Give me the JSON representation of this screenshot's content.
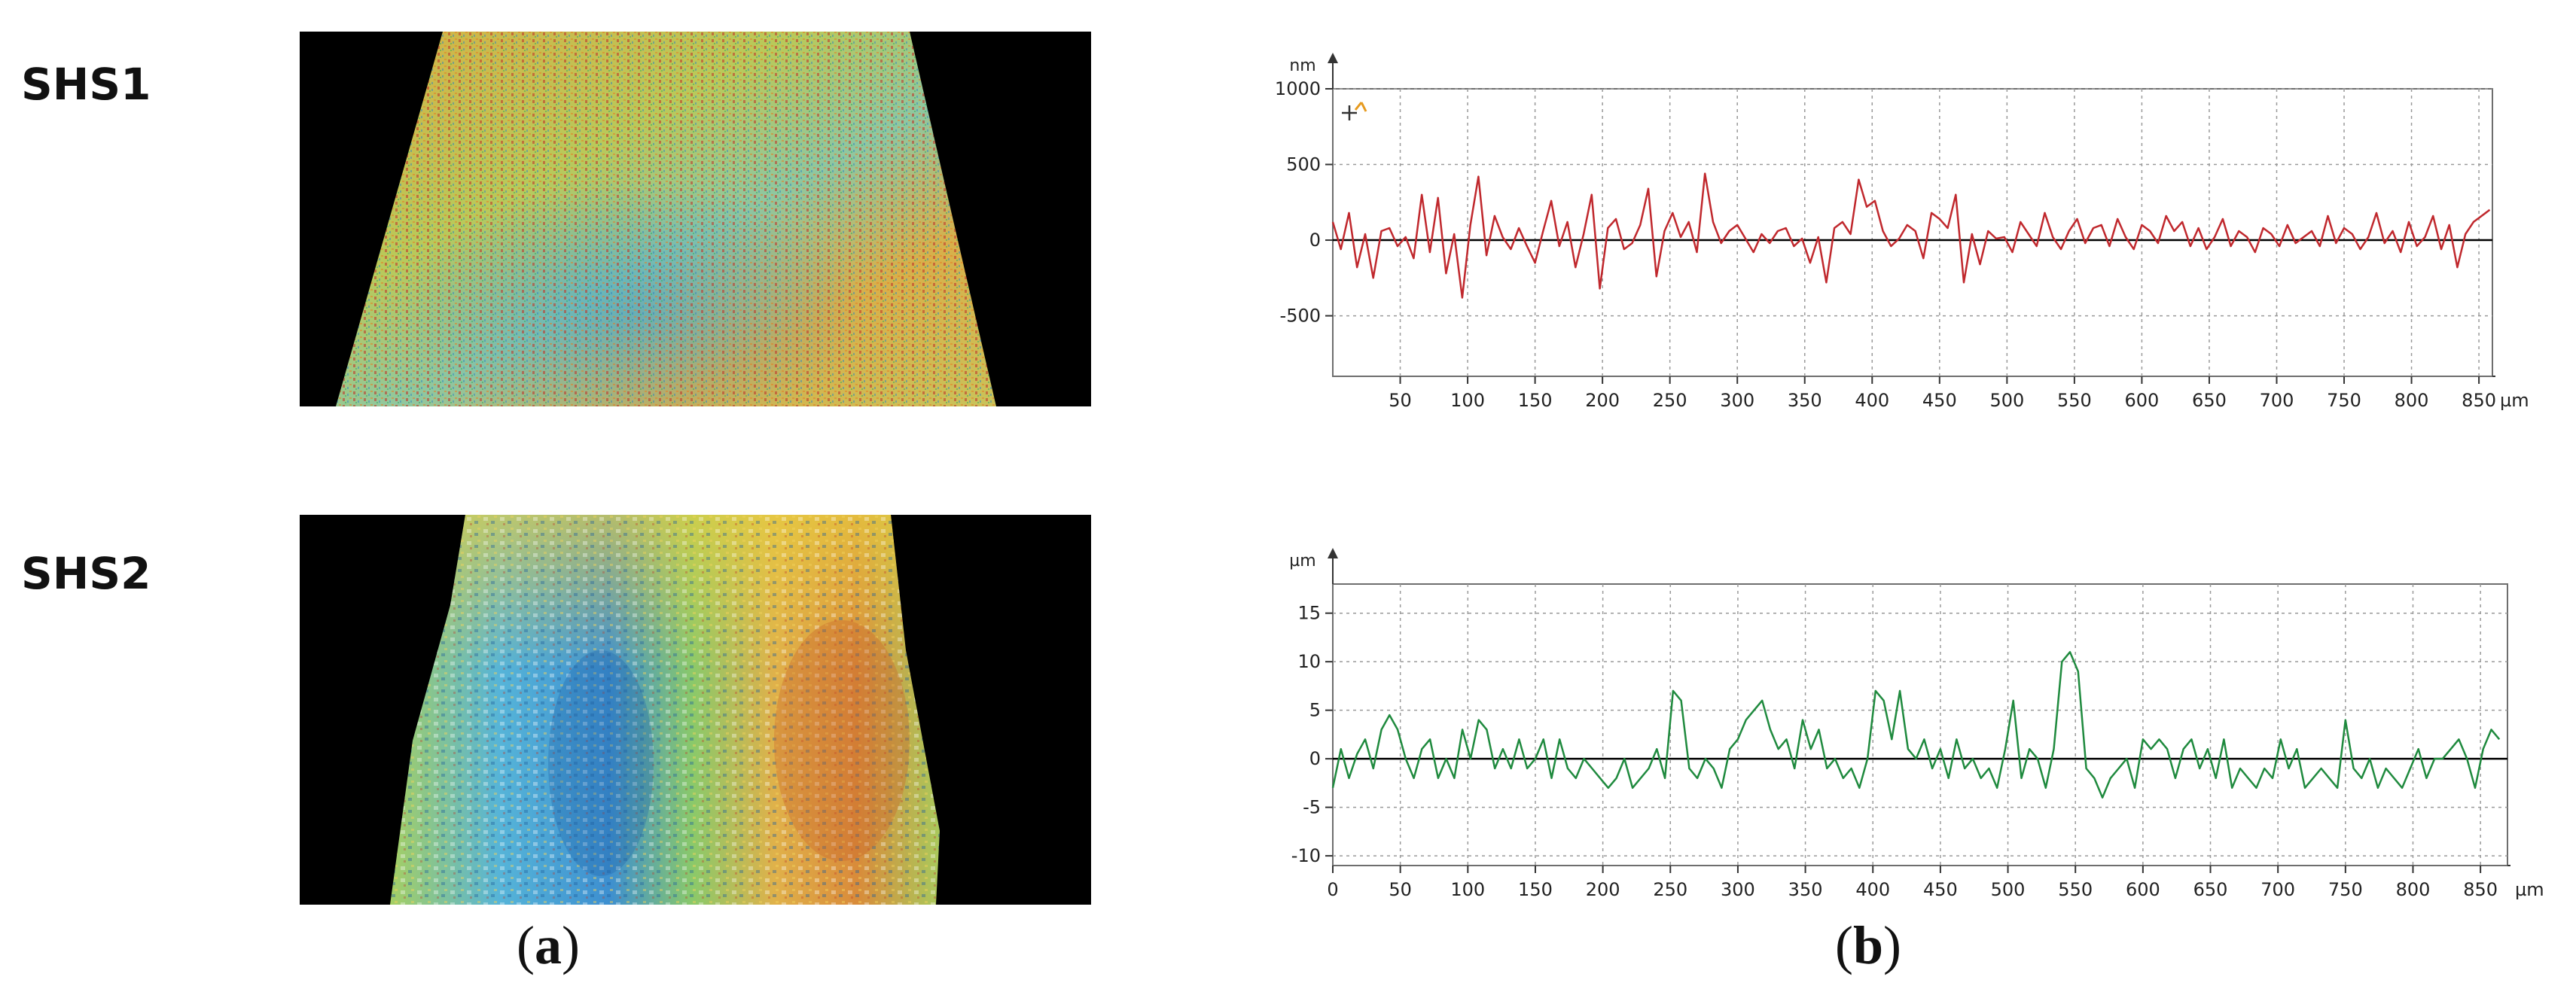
{
  "labels": {
    "row1": "SHS1",
    "row2": "SHS2",
    "panel_a_open": "(",
    "panel_a_letter": "a",
    "panel_a_close": ")",
    "panel_b_open": "(",
    "panel_b_letter": "b",
    "panel_b_close": ")"
  },
  "colors": {
    "shs1_line": "#c0282d",
    "shs2_line": "#1f8a3e",
    "grid": "#9a9a9a",
    "frame": "#6e6e6e",
    "zero_line": "#000000"
  },
  "chart_data": [
    {
      "id": "shs1",
      "type": "line",
      "unit_y": "nm",
      "unit_x": "µm",
      "xlim": [
        0,
        860
      ],
      "ylim": [
        -900,
        1000
      ],
      "yticks": [
        1000,
        500,
        0,
        -500
      ],
      "xticks": [
        50,
        100,
        150,
        200,
        250,
        300,
        350,
        400,
        450,
        500,
        550,
        600,
        650,
        700,
        750,
        800,
        850
      ],
      "grid": true,
      "series": [
        {
          "x": [
            0,
            6,
            12,
            18,
            24,
            30,
            36,
            42,
            48,
            54,
            60,
            66,
            72,
            78,
            84,
            90,
            96,
            102,
            108,
            114,
            120,
            126,
            132,
            138,
            144,
            150,
            156,
            162,
            168,
            174,
            180,
            186,
            192,
            198,
            204,
            210,
            216,
            222,
            228,
            234,
            240,
            246,
            252,
            258,
            264,
            270,
            276,
            282,
            288,
            294,
            300,
            306,
            312,
            318,
            324,
            330,
            336,
            342,
            348,
            354,
            360,
            366,
            372,
            378,
            384,
            390,
            396,
            402,
            408,
            414,
            420,
            426,
            432,
            438,
            444,
            450,
            456,
            462,
            468,
            474,
            480,
            486,
            492,
            498,
            504,
            510,
            516,
            522,
            528,
            534,
            540,
            546,
            552,
            558,
            564,
            570,
            576,
            582,
            588,
            594,
            600,
            606,
            612,
            618,
            624,
            630,
            636,
            642,
            648,
            654,
            660,
            666,
            672,
            678,
            684,
            690,
            696,
            702,
            708,
            714,
            720,
            726,
            732,
            738,
            744,
            750,
            756,
            762,
            768,
            774,
            780,
            786,
            792,
            798,
            804,
            810,
            816,
            822,
            828,
            834,
            840,
            846,
            852,
            858
          ],
          "y": [
            120,
            -60,
            180,
            -180,
            40,
            -250,
            60,
            80,
            -40,
            20,
            -120,
            300,
            -80,
            280,
            -220,
            40,
            -380,
            100,
            420,
            -100,
            160,
            20,
            -60,
            80,
            -40,
            -150,
            60,
            260,
            -40,
            120,
            -180,
            40,
            300,
            -320,
            80,
            140,
            -60,
            -20,
            100,
            340,
            -240,
            60,
            180,
            20,
            120,
            -80,
            440,
            120,
            -20,
            60,
            100,
            10,
            -80,
            40,
            -20,
            60,
            80,
            -40,
            10,
            -150,
            20,
            -280,
            80,
            120,
            40,
            400,
            220,
            260,
            60,
            -40,
            10,
            100,
            60,
            -120,
            180,
            140,
            80,
            300,
            -280,
            40,
            -160,
            60,
            10,
            20,
            -80,
            120,
            40,
            -40,
            180,
            20,
            -60,
            60,
            140,
            -20,
            80,
            100,
            -40,
            140,
            20,
            -60,
            100,
            60,
            -20,
            160,
            60,
            120,
            -40,
            80,
            -60,
            20,
            140,
            -40,
            60,
            20,
            -80,
            80,
            40,
            -40,
            100,
            -20,
            20,
            60,
            -40,
            160,
            -20,
            80,
            40,
            -60,
            20,
            180,
            -20,
            60,
            -80,
            120,
            -40,
            20,
            160,
            -60,
            100,
            -180,
            40,
            120,
            160,
            200
          ]
        }
      ]
    },
    {
      "id": "shs2",
      "type": "line",
      "unit_y": "µm",
      "unit_x": "µm",
      "xlim": [
        0,
        870
      ],
      "ylim": [
        -11,
        18
      ],
      "yticks": [
        15,
        10,
        5,
        0,
        -5,
        -10
      ],
      "xticks": [
        0,
        50,
        100,
        150,
        200,
        250,
        300,
        350,
        400,
        450,
        500,
        550,
        600,
        650,
        700,
        750,
        800,
        850
      ],
      "grid": true,
      "series": [
        {
          "x": [
            0,
            6,
            12,
            18,
            24,
            30,
            36,
            42,
            48,
            54,
            60,
            66,
            72,
            78,
            84,
            90,
            96,
            102,
            108,
            114,
            120,
            126,
            132,
            138,
            144,
            150,
            156,
            162,
            168,
            174,
            180,
            186,
            192,
            198,
            204,
            210,
            216,
            222,
            228,
            234,
            240,
            246,
            252,
            258,
            264,
            270,
            276,
            282,
            288,
            294,
            300,
            306,
            312,
            318,
            324,
            330,
            336,
            342,
            348,
            354,
            360,
            366,
            372,
            378,
            384,
            390,
            396,
            402,
            408,
            414,
            420,
            426,
            432,
            438,
            444,
            450,
            456,
            462,
            468,
            474,
            480,
            486,
            492,
            498,
            504,
            510,
            516,
            522,
            528,
            534,
            540,
            546,
            552,
            558,
            564,
            570,
            576,
            582,
            588,
            594,
            600,
            606,
            612,
            618,
            624,
            630,
            636,
            642,
            648,
            654,
            660,
            666,
            672,
            678,
            684,
            690,
            696,
            702,
            708,
            714,
            720,
            726,
            732,
            738,
            744,
            750,
            756,
            762,
            768,
            774,
            780,
            786,
            792,
            798,
            804,
            810,
            816,
            822,
            828,
            834,
            840,
            846,
            852,
            858,
            864
          ],
          "y": [
            -3,
            1,
            -2,
            0.5,
            2,
            -1,
            3,
            4.5,
            3,
            0,
            -2,
            1,
            2,
            -2,
            0,
            -2,
            3,
            0,
            4,
            3,
            -1,
            1,
            -1,
            2,
            -1,
            0,
            2,
            -2,
            2,
            -1,
            -2,
            0,
            -1,
            -2,
            -3,
            -2,
            0,
            -3,
            -2,
            -1,
            1,
            -2,
            7,
            6,
            -1,
            -2,
            0,
            -1,
            -3,
            1,
            2,
            4,
            5,
            6,
            3,
            1,
            2,
            -1,
            4,
            1,
            3,
            -1,
            0,
            -2,
            -1,
            -3,
            0,
            7,
            6,
            2,
            7,
            1,
            0,
            2,
            -1,
            1,
            -2,
            2,
            -1,
            0,
            -2,
            -1,
            -3,
            1,
            6,
            -2,
            1,
            0,
            -3,
            1,
            10,
            11,
            9,
            -1,
            -2,
            -4,
            -2,
            -1,
            0,
            -3,
            2,
            1,
            2,
            1,
            -2,
            1,
            2,
            -1,
            1,
            -2,
            2,
            -3,
            -1,
            -2,
            -3,
            -1,
            -2,
            2,
            -1,
            1,
            -3,
            -2,
            -1,
            -2,
            -3,
            4,
            -1,
            -2,
            0,
            -3,
            -1,
            -2,
            -3,
            -1,
            1,
            -2,
            0,
            0,
            1,
            2,
            0,
            -3,
            1,
            3,
            2
          ]
        }
      ]
    }
  ]
}
